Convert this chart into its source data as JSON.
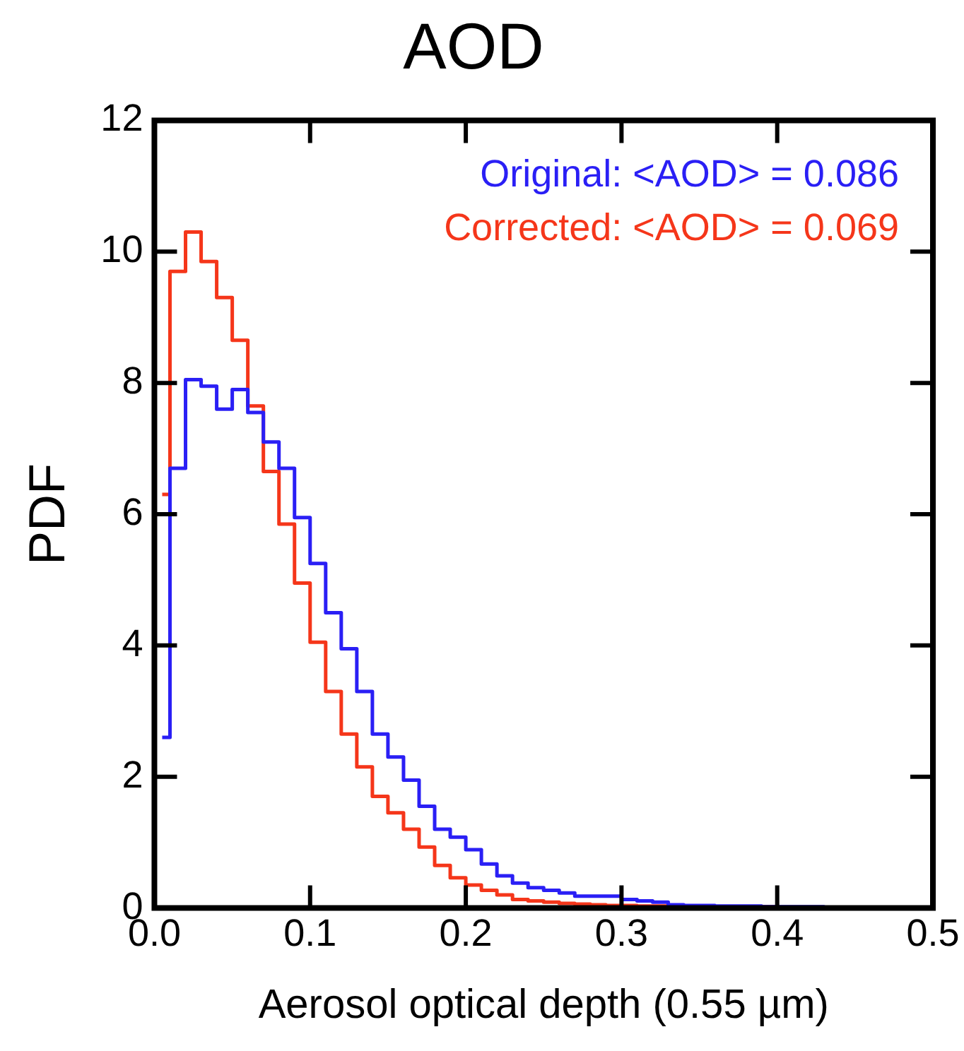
{
  "chart_data": {
    "type": "histogram",
    "title": "AOD",
    "xlabel": "Aerosol optical depth (0.55 µm)",
    "ylabel": "PDF",
    "bins": [
      0.005,
      0.01,
      0.02,
      0.03,
      0.04,
      0.05,
      0.06,
      0.07,
      0.08,
      0.09,
      0.1,
      0.11,
      0.12,
      0.13,
      0.14,
      0.15,
      0.16,
      0.17,
      0.18,
      0.19,
      0.2,
      0.21,
      0.22,
      0.23,
      0.24,
      0.25,
      0.26,
      0.27,
      0.28,
      0.29,
      0.3,
      0.31,
      0.32,
      0.33,
      0.34,
      0.35,
      0.36,
      0.37,
      0.38,
      0.39,
      0.4,
      0.41,
      0.42,
      0.43,
      0.44,
      0.45,
      0.46,
      0.47,
      0.48,
      0.49,
      0.5
    ],
    "series": [
      {
        "name": "Original: <AOD> = 0.086",
        "color": "#2a1ff5",
        "values": [
          2.6,
          6.7,
          8.05,
          7.95,
          7.6,
          7.9,
          7.55,
          7.1,
          6.7,
          5.95,
          5.25,
          4.5,
          3.95,
          3.3,
          2.65,
          2.3,
          1.95,
          1.55,
          1.2,
          1.08,
          0.89,
          0.67,
          0.49,
          0.38,
          0.31,
          0.27,
          0.23,
          0.18,
          0.18,
          0.18,
          0.13,
          0.11,
          0.09,
          0.05,
          0.04,
          0.04,
          0.03,
          0.03,
          0.03,
          0.02,
          0.02,
          0.02,
          0.02,
          0.01,
          0.01,
          0.01,
          0.01,
          0.01,
          0.01,
          0.01
        ]
      },
      {
        "name": "Corrected: <AOD> = 0.069",
        "color": "#f5361a",
        "values": [
          6.3,
          9.7,
          10.3,
          9.85,
          9.3,
          8.65,
          7.65,
          6.65,
          5.85,
          4.95,
          4.05,
          3.3,
          2.65,
          2.15,
          1.7,
          1.45,
          1.2,
          0.93,
          0.65,
          0.46,
          0.35,
          0.27,
          0.2,
          0.13,
          0.11,
          0.09,
          0.07,
          0.06,
          0.05,
          0.04,
          0.04,
          0.03,
          0.03,
          0.03,
          0.03,
          0.02,
          0.02,
          0.02,
          0.02,
          0.02,
          0.01,
          0.01,
          0.01,
          0.01,
          0.01,
          0.01,
          0.01,
          0.01,
          0.01,
          0.01
        ]
      }
    ],
    "xlim": [
      0,
      0.5
    ],
    "xticks": [
      {
        "value": 0,
        "label": "0.0"
      },
      {
        "value": 0.1,
        "label": "0.1"
      },
      {
        "value": 0.2,
        "label": "0.2"
      },
      {
        "value": 0.3,
        "label": "0.3"
      },
      {
        "value": 0.4,
        "label": "0.4"
      },
      {
        "value": 0.5,
        "label": "0.5"
      }
    ],
    "ylim": [
      0,
      12
    ],
    "yticks": [
      0,
      2,
      4,
      6,
      8,
      10,
      12
    ],
    "legend": "top right",
    "grid": false
  }
}
